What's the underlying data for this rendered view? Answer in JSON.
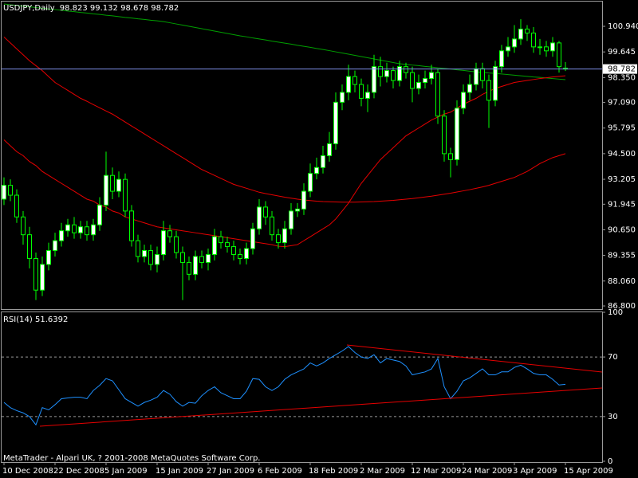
{
  "footer": "MetaTrader - Alpari UK, ? 2001-2008 MetaQuotes Software Corp.",
  "chart_data": [
    {
      "type": "candlestick",
      "title": "USDJPY,Daily",
      "categories": [
        "10 Dec 2008",
        null,
        null,
        null,
        null,
        null,
        null,
        null,
        "22 Dec 2008",
        null,
        null,
        null,
        null,
        null,
        null,
        null,
        "5 Jan 2009",
        null,
        null,
        null,
        null,
        null,
        null,
        null,
        "15 Jan 2009",
        null,
        null,
        null,
        null,
        null,
        null,
        null,
        "27 Jan 2009",
        null,
        null,
        null,
        null,
        null,
        null,
        null,
        "6 Feb 2009",
        null,
        null,
        null,
        null,
        null,
        null,
        null,
        "18 Feb 2009",
        null,
        null,
        null,
        null,
        null,
        null,
        null,
        "2 Mar 2009",
        null,
        null,
        null,
        null,
        null,
        null,
        null,
        "12 Mar 2009",
        null,
        null,
        null,
        null,
        null,
        null,
        null,
        "24 Mar 2009",
        null,
        null,
        null,
        null,
        null,
        null,
        null,
        "3 Apr 2009",
        null,
        null,
        null,
        null,
        null,
        null,
        null,
        "15 Apr 2009"
      ],
      "open": [
        92.2,
        92.9,
        92.4,
        91.3,
        90.4,
        89.2,
        87.6,
        88.9,
        89.6,
        90.1,
        90.6,
        90.9,
        90.5,
        90.8,
        90.4,
        90.9,
        91.9,
        93.4,
        92.6,
        93.2,
        91.6,
        90.1,
        89.3,
        89.6,
        88.9,
        89.4,
        90.6,
        90.3,
        89.5,
        89.0,
        88.4,
        89.3,
        89.0,
        89.4,
        90.3,
        90.0,
        89.8,
        89.4,
        89.2,
        89.7,
        90.7,
        91.8,
        91.3,
        90.4,
        90.0,
        90.7,
        91.6,
        91.7,
        92.6,
        93.5,
        93.8,
        94.4,
        95.0,
        97.1,
        97.6,
        98.4,
        98.0,
        97.3,
        97.6,
        98.9,
        98.4,
        98.7,
        98.2,
        98.9,
        98.6,
        97.8,
        98.1,
        98.3,
        98.6,
        96.4,
        94.5,
        94.2,
        96.8,
        97.6,
        98.0,
        98.8,
        98.2,
        97.2,
        98.9,
        99.7,
        99.9,
        100.3,
        100.8,
        100.6,
        99.9,
        99.9,
        99.7,
        100.1,
        98.823
      ],
      "high": [
        93.3,
        93.2,
        92.7,
        91.6,
        90.8,
        89.5,
        89.3,
        90.0,
        90.5,
        91.0,
        91.2,
        91.3,
        91.1,
        91.1,
        91.2,
        92.3,
        94.6,
        93.8,
        93.6,
        93.5,
        91.9,
        90.4,
        89.9,
        89.9,
        89.8,
        91.1,
        90.9,
        90.6,
        89.8,
        89.3,
        89.6,
        89.6,
        89.7,
        90.7,
        90.6,
        90.3,
        90.1,
        89.7,
        90.0,
        91.0,
        92.2,
        92.1,
        91.6,
        90.7,
        91.1,
        92.0,
        92.0,
        93.0,
        94.0,
        94.3,
        94.9,
        95.6,
        97.6,
        98.0,
        99.0,
        98.7,
        98.3,
        98.0,
        99.5,
        99.4,
        99.1,
        98.9,
        99.2,
        99.1,
        98.9,
        98.5,
        98.7,
        99.0,
        98.8,
        96.7,
        94.8,
        97.2,
        98.0,
        98.5,
        99.1,
        99.1,
        98.5,
        99.2,
        100.0,
        100.4,
        101.0,
        101.3,
        101.0,
        100.9,
        100.3,
        100.2,
        100.4,
        100.2,
        99.132
      ],
      "low": [
        91.9,
        92.1,
        91.0,
        89.9,
        88.7,
        87.1,
        87.3,
        88.6,
        89.3,
        89.8,
        90.3,
        90.2,
        90.2,
        90.1,
        90.1,
        90.6,
        91.6,
        92.2,
        92.3,
        91.3,
        89.8,
        89.0,
        89.0,
        88.6,
        88.5,
        89.1,
        90.0,
        89.2,
        87.1,
        88.1,
        88.1,
        88.7,
        88.6,
        89.1,
        89.7,
        89.5,
        89.1,
        88.9,
        88.9,
        89.4,
        90.4,
        90.9,
        90.1,
        89.7,
        89.7,
        90.4,
        91.3,
        91.4,
        92.3,
        93.2,
        93.5,
        94.1,
        94.7,
        96.7,
        97.2,
        97.6,
        96.9,
        96.6,
        97.3,
        97.9,
        98.1,
        97.8,
        97.9,
        98.3,
        97.1,
        97.5,
        97.8,
        98.0,
        96.0,
        94.1,
        93.3,
        93.9,
        96.5,
        97.2,
        97.7,
        97.8,
        95.8,
        96.9,
        98.6,
        99.4,
        99.6,
        100.0,
        100.2,
        99.6,
        99.5,
        99.4,
        99.4,
        98.6,
        98.678
      ],
      "close": [
        92.9,
        92.4,
        91.3,
        90.4,
        89.2,
        87.6,
        88.9,
        89.6,
        90.1,
        90.6,
        90.9,
        90.5,
        90.8,
        90.4,
        90.9,
        91.9,
        93.4,
        92.6,
        93.2,
        91.6,
        90.1,
        89.3,
        89.6,
        88.9,
        89.4,
        90.6,
        90.3,
        89.5,
        89.0,
        88.4,
        89.3,
        89.0,
        89.4,
        90.3,
        90.0,
        89.8,
        89.4,
        89.2,
        89.7,
        90.7,
        91.8,
        91.3,
        90.4,
        90.0,
        90.7,
        91.6,
        91.7,
        92.6,
        93.5,
        93.8,
        94.4,
        95.0,
        97.1,
        97.6,
        98.4,
        98.0,
        97.3,
        97.6,
        98.9,
        98.4,
        98.7,
        98.2,
        98.9,
        98.6,
        97.8,
        98.1,
        98.3,
        98.6,
        96.4,
        94.5,
        94.2,
        96.8,
        97.6,
        98.0,
        98.8,
        98.2,
        97.2,
        98.9,
        99.7,
        99.9,
        100.3,
        100.8,
        100.6,
        99.9,
        99.9,
        99.7,
        100.1,
        98.9,
        98.782
      ],
      "color": "#00ff00",
      "up_color": "#ffffff",
      "down_color": "#000000",
      "price_line_color": "#7d8fe6",
      "overlays": [
        {
          "color": "#00a000",
          "values": [
            102.07,
            102.03,
            102.0,
            101.96,
            101.93,
            101.89,
            101.86,
            101.82,
            101.79,
            101.75,
            101.71,
            101.68,
            101.64,
            101.61,
            101.57,
            101.54,
            101.5,
            101.47,
            101.43,
            101.39,
            101.36,
            101.32,
            101.29,
            101.25,
            101.22,
            101.18,
            101.12,
            101.06,
            101.0,
            100.94,
            100.88,
            100.82,
            100.76,
            100.7,
            100.64,
            100.58,
            100.52,
            100.46,
            100.41,
            100.35,
            100.3,
            100.25,
            100.19,
            100.14,
            100.09,
            100.04,
            99.98,
            99.93,
            99.88,
            99.82,
            99.77,
            99.71,
            99.65,
            99.59,
            99.53,
            99.47,
            99.41,
            99.35,
            99.29,
            99.23,
            99.17,
            99.11,
            99.05,
            99.02,
            98.98,
            98.95,
            98.91,
            98.88,
            98.84,
            98.81,
            98.78,
            98.74,
            98.71,
            98.67,
            98.64,
            98.61,
            98.58,
            98.56,
            98.53,
            98.5,
            98.47,
            98.44,
            98.41,
            98.38,
            98.36,
            98.33,
            98.3,
            98.27,
            98.24
          ]
        },
        {
          "color": "#e60000",
          "values": [
            100.4,
            100.1,
            99.8,
            99.5,
            99.2,
            98.95,
            98.7,
            98.4,
            98.1,
            97.9,
            97.7,
            97.5,
            97.3,
            97.15,
            96.98,
            96.82,
            96.66,
            96.5,
            96.3,
            96.1,
            95.9,
            95.7,
            95.5,
            95.3,
            95.1,
            94.9,
            94.7,
            94.5,
            94.3,
            94.1,
            93.9,
            93.7,
            93.55,
            93.4,
            93.25,
            93.1,
            92.95,
            92.85,
            92.75,
            92.65,
            92.55,
            92.48,
            92.42,
            92.36,
            92.3,
            92.25,
            92.2,
            92.16,
            92.13,
            92.1,
            92.08,
            92.07,
            92.06,
            92.05,
            92.05,
            92.05,
            92.06,
            92.07,
            92.08,
            92.1,
            92.12,
            92.14,
            92.17,
            92.2,
            92.23,
            92.27,
            92.31,
            92.35,
            92.4,
            92.45,
            92.5,
            92.56,
            92.62,
            92.68,
            92.75,
            92.82,
            92.9,
            93.0,
            93.1,
            93.2,
            93.3,
            93.45,
            93.6,
            93.8,
            94.0,
            94.15,
            94.3,
            94.4,
            94.5
          ]
        },
        {
          "color": "#e60000",
          "values": [
            95.2,
            94.9,
            94.6,
            94.4,
            94.1,
            93.9,
            93.6,
            93.4,
            93.2,
            93.0,
            92.8,
            92.6,
            92.4,
            92.2,
            92.1,
            91.9,
            91.8,
            91.6,
            91.5,
            91.3,
            91.2,
            91.1,
            91.0,
            90.9,
            90.8,
            90.75,
            90.7,
            90.65,
            90.6,
            90.55,
            90.5,
            90.45,
            90.4,
            90.35,
            90.3,
            90.25,
            90.2,
            90.15,
            90.1,
            90.05,
            90.0,
            89.95,
            89.9,
            89.82,
            89.8,
            89.85,
            89.9,
            90.1,
            90.3,
            90.5,
            90.7,
            90.9,
            91.2,
            91.6,
            92.0,
            92.5,
            93.0,
            93.4,
            93.8,
            94.2,
            94.5,
            94.8,
            95.1,
            95.4,
            95.6,
            95.8,
            96.0,
            96.2,
            96.35,
            96.5,
            96.6,
            96.8,
            97.0,
            97.15,
            97.3,
            97.5,
            97.65,
            97.8,
            97.9,
            98.0,
            98.1,
            98.15,
            98.2,
            98.25,
            98.3,
            98.34,
            98.38,
            98.41,
            98.44
          ]
        }
      ],
      "ylim": [
        86.64,
        102.15
      ],
      "yticks": [
        {
          "value": 100.94,
          "label": "100.940"
        },
        {
          "value": 99.645,
          "label": "99.645"
        },
        {
          "value": 98.35,
          "label": "98.350"
        },
        {
          "value": 97.09,
          "label": "97.090"
        },
        {
          "value": 95.795,
          "label": "95.795"
        },
        {
          "value": 94.5,
          "label": "94.500"
        },
        {
          "value": 93.205,
          "label": "93.205"
        },
        {
          "value": 91.945,
          "label": "91.945"
        },
        {
          "value": 90.65,
          "label": "90.650"
        },
        {
          "value": 89.355,
          "label": "89.355"
        },
        {
          "value": 88.06,
          "label": "88.060"
        },
        {
          "value": 86.8,
          "label": "86.800"
        }
      ],
      "grid": false
    },
    {
      "type": "line",
      "title": "RSI(14)",
      "color": "#1e90ff",
      "values": [
        39.5,
        36,
        34,
        32.5,
        30,
        24.5,
        36,
        34.5,
        38,
        42,
        42.5,
        43,
        43,
        42,
        47.5,
        51,
        55.5,
        54,
        48,
        42,
        39.5,
        37,
        39.5,
        41,
        43,
        47.5,
        45,
        40,
        37,
        39.5,
        39,
        44,
        47.5,
        50,
        46,
        44,
        42,
        42,
        47,
        55.5,
        55,
        50,
        47.5,
        50,
        55,
        58,
        60,
        62,
        66,
        64,
        66,
        69,
        71.5,
        74,
        77,
        73,
        70,
        69,
        71.5,
        66,
        69,
        68,
        67,
        64,
        58,
        59,
        60,
        62,
        69,
        50,
        42,
        47,
        54,
        56,
        59,
        62,
        58,
        58,
        60,
        60,
        63,
        64.5,
        62,
        59,
        58,
        58,
        55,
        51.2,
        51.6392
      ],
      "ylim": [
        0,
        100
      ],
      "yticks": [
        100,
        70,
        30,
        0
      ],
      "grid": false
    }
  ]
}
